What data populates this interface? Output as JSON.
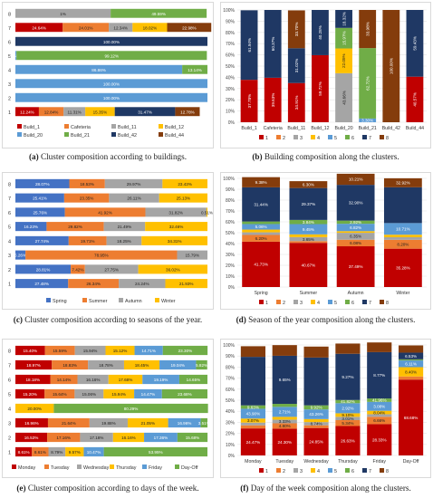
{
  "captions": {
    "a": {
      "letter": "(a)",
      "text": " Cluster composition according to buildings."
    },
    "b": {
      "letter": "(b)",
      "text": " Building composition along the clusters."
    },
    "c": {
      "letter": "(c)",
      "text": " Cluster composition according to seasons of the year."
    },
    "d": {
      "letter": "(d)",
      "text": " Season of the year composition along the clusters."
    },
    "e": {
      "letter": "(e)",
      "text": " Cluster composition according to days of the week."
    },
    "f": {
      "letter": "(f)",
      "text": " Day of the week composition along the clusters."
    }
  },
  "chart_data": [
    {
      "id": "a",
      "type": "bar",
      "orientation": "horizontal",
      "stacked": true,
      "rows": [
        "8",
        "7",
        "6",
        "5",
        "4",
        "3",
        "2",
        "1"
      ],
      "series": [
        {
          "name": "Build_1",
          "color": "#c00000",
          "values": [
            0,
            24.64,
            0,
            0,
            0,
            0,
            0,
            12.24
          ]
        },
        {
          "name": "Cafeteria",
          "color": "#ed7d31",
          "values": [
            0,
            24.01,
            0,
            0,
            0,
            0,
            0,
            12.84
          ]
        },
        {
          "name": "Build_11",
          "color": "#a5a5a5",
          "values": [
            49.59,
            12.34,
            0,
            0,
            0,
            0,
            0,
            11.31
          ]
        },
        {
          "name": "Build_12",
          "color": "#ffc000",
          "values": [
            0,
            18.02,
            0,
            0,
            0,
            0,
            0,
            15.35
          ]
        },
        {
          "name": "Build_20",
          "color": "#5b9bd5",
          "values": [
            0,
            0,
            0,
            0.58,
            86.86,
            100,
            100,
            0
          ]
        },
        {
          "name": "Build_21",
          "color": "#70ad47",
          "values": [
            50.0,
            0,
            0,
            99.12,
            13.14,
            0,
            0,
            0
          ]
        },
        {
          "name": "Build_42",
          "color": "#1f3864",
          "values": [
            0,
            0,
            100,
            0,
            0,
            0,
            0,
            31.47
          ]
        },
        {
          "name": "Build_44",
          "color": "#843c0c",
          "values": [
            0,
            22.98,
            0,
            0,
            0,
            0,
            0,
            12.78
          ]
        }
      ],
      "labels": [
        [
          "1%",
          "49.59%",
          "50.00%"
        ],
        [
          "24.64%",
          "24.01%",
          "12.34%",
          "18.02%",
          "22.98%"
        ],
        [
          "100.00%"
        ],
        [
          "0.58%",
          "99.12%"
        ],
        [
          "86.86%",
          "13.14%"
        ],
        [
          "100.00%"
        ],
        [
          "100.00%"
        ],
        [
          "12.24%",
          "12.84%",
          "11.31%",
          "15.35%",
          "31.47%",
          "12.78%"
        ]
      ]
    },
    {
      "id": "b",
      "type": "bar",
      "orientation": "vertical",
      "stacked": true,
      "categories": [
        "Build_1",
        "Cafeteria",
        "Build_11",
        "Build_12",
        "Build_20",
        "Build_21",
        "Build_42",
        "Build_44"
      ],
      "yticks": [
        "0%",
        "10%",
        "20%",
        "30%",
        "40%",
        "50%",
        "60%",
        "70%",
        "80%",
        "90%",
        "100%"
      ],
      "series": [
        {
          "name": "1",
          "color": "#c00000",
          "values": [
            37.78,
            39.63,
            34.91,
            59.72,
            0,
            0,
            0,
            40.57
          ]
        },
        {
          "name": "2",
          "color": "#ed7d31",
          "values": [
            0,
            0,
            0,
            0,
            0,
            0,
            0,
            0
          ]
        },
        {
          "name": "3",
          "color": "#a5a5a5",
          "values": [
            0,
            0,
            0,
            0,
            43.66,
            0,
            0,
            0
          ]
        },
        {
          "name": "4",
          "color": "#ffc000",
          "values": [
            0,
            0,
            0,
            0,
            22.05,
            0,
            0,
            0
          ]
        },
        {
          "name": "5",
          "color": "#5b9bd5",
          "values": [
            0,
            0,
            0,
            0,
            0,
            3.3,
            0,
            0
          ]
        },
        {
          "name": "6",
          "color": "#70ad47",
          "values": [
            0,
            0,
            0,
            0,
            18.32,
            62.72,
            0,
            0
          ]
        },
        {
          "name": "7",
          "color": "#1f3864",
          "values": [
            61.94,
            60.37,
            31.02,
            40.28,
            15.97,
            0,
            0,
            59.43
          ]
        },
        {
          "name": "8",
          "color": "#843c0c",
          "values": [
            0,
            0,
            33.7,
            0,
            0,
            33.98,
            100,
            0
          ]
        }
      ],
      "labels": [
        [
          "37.78%",
          "61.94%"
        ],
        [
          "39.63%",
          "60.37%"
        ],
        [
          "34.91%",
          "31.02%",
          "33.70%"
        ],
        [
          "59.72%",
          "40.28%"
        ],
        [
          "43.66%",
          "22.05%",
          "15.97%",
          "18.32%"
        ],
        [
          "3.30%",
          "62.72%",
          "33.98%"
        ],
        [
          "100.00%"
        ],
        [
          "40.57%",
          "59.43%"
        ]
      ]
    },
    {
      "id": "c",
      "type": "bar",
      "orientation": "horizontal",
      "stacked": true,
      "rows": [
        "8",
        "7",
        "6",
        "5",
        "4",
        "3",
        "2",
        "1"
      ],
      "series": [
        {
          "name": "Spring",
          "color": "#4472c4",
          "values": [
            28.07,
            25.41,
            25.76,
            16.23,
            27.74,
            5.26,
            28.81,
            27.48
          ]
        },
        {
          "name": "Summer",
          "color": "#ed7d31",
          "values": [
            18.53,
            23.35,
            41.92,
            29.82,
            19.71,
            78.95,
            7.42,
            26.34
          ]
        },
        {
          "name": "Autumn",
          "color": "#a5a5a5",
          "values": [
            29.97,
            26.11,
            31.82,
            21.49,
            18.25,
            15.79,
            27.75,
            24.24
          ]
        },
        {
          "name": "Winter",
          "color": "#ffc000",
          "values": [
            23.43,
            25.13,
            0.51,
            32.46,
            34.31,
            0,
            36.02,
            21.93
          ]
        }
      ],
      "labels": [
        [
          "28.07%",
          "18.53%",
          "29.97%",
          "23.43%"
        ],
        [
          "25.41%",
          "23.35%",
          "26.11%",
          "25.13%"
        ],
        [
          "25.76%",
          "41.92%",
          "31.82%",
          "0.51%"
        ],
        [
          "16.23%",
          "29.82%",
          "21.49%",
          "32.46%"
        ],
        [
          "27.74%",
          "19.71%",
          "18.25%",
          "34.31%"
        ],
        [
          "5.26%",
          "78.95%",
          "15.79%"
        ],
        [
          "28.81%",
          "7.42%",
          "27.75%",
          "36.02%"
        ],
        [
          "27.48%",
          "26.34%",
          "24.24%",
          "21.93%"
        ]
      ]
    },
    {
      "id": "d",
      "type": "bar",
      "orientation": "vertical",
      "stacked": true,
      "categories": [
        "Spring",
        "Summer",
        "Autumn",
        "Winter"
      ],
      "yticks": [
        "0%",
        "10%",
        "20%",
        "30%",
        "40%",
        "50%",
        "60%",
        "70%",
        "80%",
        "90%",
        "100%"
      ],
      "series": [
        {
          "name": "1",
          "color": "#c00000",
          "values": [
            41.73,
            40.67,
            37.49,
            35.28
          ]
        },
        {
          "name": "2",
          "color": "#ed7d31",
          "values": [
            6.2,
            1.62,
            6.08,
            8.2
          ]
        },
        {
          "name": "3",
          "color": "#a5a5a5",
          "values": [
            2.43,
            3.65,
            6.35,
            2.34
          ]
        },
        {
          "name": "4",
          "color": "#ffc000",
          "values": [
            2.52,
            2.52,
            1.5,
            2.34
          ]
        },
        {
          "name": "5",
          "color": "#5b9bd5",
          "values": [
            5.06,
            9.45,
            6.82,
            10.71
          ]
        },
        {
          "name": "6",
          "color": "#70ad47",
          "values": [
            2.37,
            3.84,
            2.92,
            0
          ]
        },
        {
          "name": "7",
          "color": "#1f3864",
          "values": [
            31.44,
            29.37,
            32.9,
            32.92
          ]
        },
        {
          "name": "8",
          "color": "#843c0c",
          "values": [
            9.38,
            6.3,
            10.21,
            8.3
          ]
        }
      ],
      "labels": [
        [
          "41.73%",
          "6.20%",
          "2.43%",
          "2.52%",
          "5.06%",
          "2.37%",
          "31.44%",
          "9.38%"
        ],
        [
          "40.67%",
          "1.62%",
          "3.65%",
          "2.52%",
          "9.45%",
          "3.84%",
          "29.37%",
          "6.30%"
        ],
        [
          "37.49%",
          "6.08%",
          "6.35%",
          "1.50%",
          "6.82%",
          "2.92%",
          "32.90%",
          "10.21%"
        ],
        [
          "35.28%",
          "8.20%",
          "2.34%",
          "2.34%",
          "10.71%",
          "",
          "32.92%",
          "8.30%"
        ]
      ]
    },
    {
      "id": "e",
      "type": "bar",
      "orientation": "horizontal",
      "stacked": true,
      "rows": [
        "8",
        "7",
        "6",
        "5",
        "4",
        "3",
        "2",
        "1"
      ],
      "series": [
        {
          "name": "Monday",
          "color": "#c00000",
          "values": [
            15.4,
            18.97,
            18.18,
            15.2,
            0,
            16.96,
            16.53,
            8.61
          ]
        },
        {
          "name": "Tuesday",
          "color": "#ed7d31",
          "values": [
            15.59,
            18.83,
            14.14,
            15.64,
            0,
            21.64,
            17.16,
            8.61
          ]
        },
        {
          "name": "Wednesday",
          "color": "#a5a5a5",
          "values": [
            15.94,
            18.78,
            16.16,
            15.06,
            0,
            19.88,
            17.16,
            8.79
          ]
        },
        {
          "name": "Thursday",
          "color": "#ffc000",
          "values": [
            15.12,
            18.45,
            17.68,
            15.94,
            20.0,
            21.05,
            16.16,
            9.57
          ]
        },
        {
          "name": "Friday",
          "color": "#5b9bd5",
          "values": [
            14.71,
            19.04,
            19.19,
            14.47,
            0,
            16.96,
            17.36,
            10.47
          ]
        },
        {
          "name": "Day-Off",
          "color": "#70ad47",
          "values": [
            23.3,
            5.82,
            14.65,
            23.68,
            80.29,
            3.51,
            15.68,
            53.95
          ]
        }
      ],
      "labels": [
        [
          "15.40%",
          "15.59%",
          "15.94%",
          "15.12%",
          "14.71%",
          "23.30%"
        ],
        [
          "18.97%",
          "18.83%",
          "18.78%",
          "18.45%",
          "19.04%",
          "5.82%"
        ],
        [
          "18.18%",
          "14.14%",
          "16.16%",
          "17.68%",
          "19.19%",
          "14.65%"
        ],
        [
          "15.20%",
          "15.64%",
          "15.06%",
          "15.94%",
          "14.47%",
          "23.68%"
        ],
        [
          "20.00%",
          "80.29%"
        ],
        [
          "16.96%",
          "21.64%",
          "19.88%",
          "21.05%",
          "16.96%",
          "3.51%"
        ],
        [
          "16.53%",
          "17.16%",
          "17.16%",
          "16.16%",
          "17.36%",
          "15.68%"
        ],
        [
          "8.61%",
          "8.61%",
          "8.79%",
          "9.57%",
          "10.47%",
          "53.95%"
        ]
      ]
    },
    {
      "id": "f",
      "type": "bar",
      "orientation": "vertical",
      "stacked": true,
      "categories": [
        "Monday",
        "Tuesday",
        "Wednesday",
        "Thursday",
        "Friday",
        "Day-Off"
      ],
      "yticks": [
        "0%",
        "10%",
        "20%",
        "30%",
        "40%",
        "50%",
        "60%",
        "70%",
        "80%",
        "90%",
        "100%"
      ],
      "series": [
        {
          "name": "1",
          "color": "#c00000",
          "values": [
            24.47,
            24.3,
            24.85,
            26.63,
            28.33,
            68.68
          ]
        },
        {
          "name": "2",
          "color": "#ed7d31",
          "values": [
            2.8,
            4.8,
            2.47,
            5.34,
            6.66,
            2.83
          ]
        },
        {
          "name": "3",
          "color": "#a5a5a5",
          "values": [
            2.47,
            3.33,
            2.88,
            3.01,
            2.35,
            0
          ]
        },
        {
          "name": "4",
          "color": "#ffc000",
          "values": [
            3.66,
            2.5,
            2.72,
            3.2,
            3.1,
            8.4
          ]
        },
        {
          "name": "5",
          "color": "#5b9bd5",
          "values": [
            8.87,
            9.06,
            8.74,
            9.1,
            8.04,
            6.11
          ]
        },
        {
          "name": "6",
          "color": "#70ad47",
          "values": [
            3.07,
            2.71,
            3.71,
            2.92,
            3.08,
            1.0
          ]
        },
        {
          "name": "7",
          "color": "#1f3864",
          "values": [
            43.9,
            43.52,
            43.26,
            41.82,
            41.96,
            6.04
          ]
        },
        {
          "name": "8",
          "color": "#843c0c",
          "values": [
            9.63,
            9.65,
            9.92,
            9.27,
            8.77,
            6.53
          ]
        }
      ],
      "labels": [
        [
          "24.47%",
          "2.47%",
          "8.87%",
          "3.07%",
          "43.90%",
          "9.63%"
        ],
        [
          "24.30%",
          "4.80%",
          "3.33%",
          "9.06%",
          "2.71%",
          "43.52%",
          "9.65%"
        ],
        [
          "24.85%",
          "2.88%",
          "8.74%",
          "3.71%",
          "43.26%",
          "9.92%"
        ],
        [
          "26.63%",
          "5.34%",
          "3.01%",
          "9.10%",
          "2.92%",
          "41.82%",
          "9.27%"
        ],
        [
          "28.33%",
          "6.66%",
          "2.35%",
          "8.04%",
          "3.08%",
          "41.96%",
          "8.77%"
        ],
        [
          "68.68%",
          "2.83%",
          "8.40%",
          "6.11%",
          "6.04%",
          "6.53%"
        ]
      ]
    }
  ]
}
